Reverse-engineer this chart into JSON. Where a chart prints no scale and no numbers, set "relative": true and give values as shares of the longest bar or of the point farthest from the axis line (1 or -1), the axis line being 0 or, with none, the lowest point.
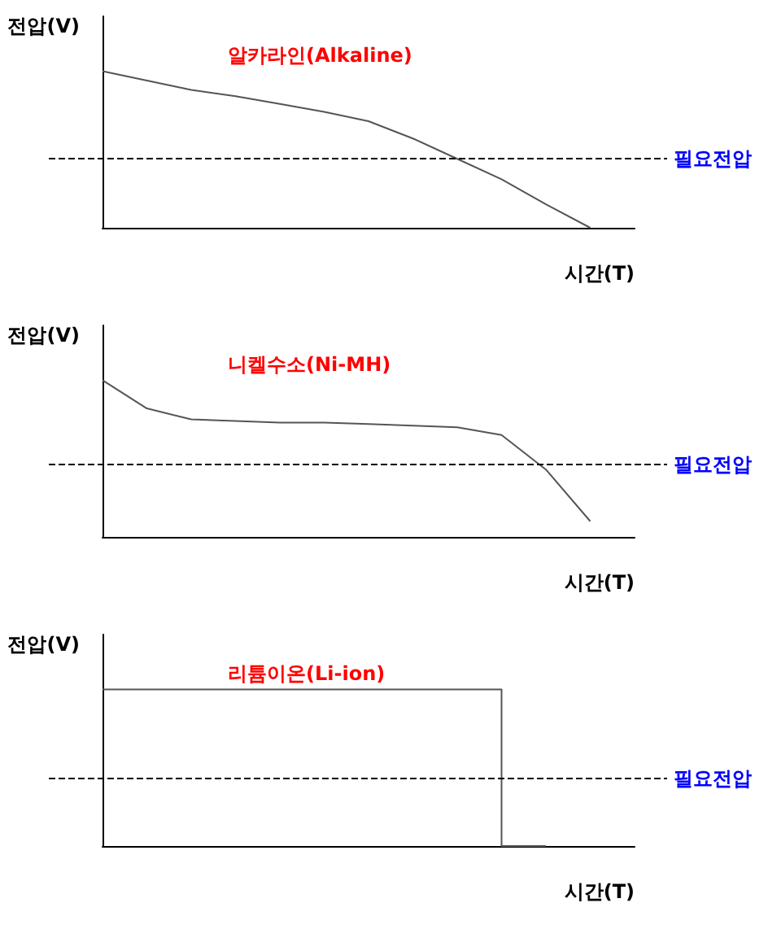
{
  "chart_data": [
    {
      "type": "line",
      "relative": true,
      "xlabel": "시간(T)",
      "ylabel": "전압(V)",
      "annotations": [
        "알카라인(Alkaline)"
      ],
      "categories": [
        null,
        null,
        null,
        null,
        null,
        null,
        null,
        null,
        null,
        null,
        null,
        null,
        null
      ],
      "series": [
        {
          "color": "#555555",
          "values": [
            1,
            0.94,
            0.88,
            0.84,
            0.79,
            0.74,
            0.68,
            0.57,
            0.44,
            0.31,
            0.15,
            0,
            null
          ]
        }
      ],
      "ref_lines": [
        {
          "axis": "y",
          "value": 0.44,
          "label": "필요전압",
          "color": "#000000",
          "line_style": "dashed"
        }
      ],
      "grid": false,
      "marker": "none"
    },
    {
      "type": "line",
      "relative": true,
      "xlabel": "시간(T)",
      "ylabel": "전압(V)",
      "annotations": [
        "니켈수소(Ni-MH)"
      ],
      "categories": [
        null,
        null,
        null,
        null,
        null,
        null,
        null,
        null,
        null,
        null,
        null,
        null,
        null
      ],
      "series": [
        {
          "color": "#555555",
          "values": [
            1,
            0.82,
            0.75,
            0.74,
            0.73,
            0.73,
            0.72,
            0.71,
            0.7,
            0.65,
            0.43,
            0.1,
            null
          ]
        }
      ],
      "ref_lines": [
        {
          "axis": "y",
          "value": 0.46,
          "label": "필요전압",
          "color": "#000000",
          "line_style": "dashed"
        }
      ],
      "grid": false,
      "marker": "none"
    },
    {
      "type": "step",
      "relative": true,
      "xlabel": "시간(T)",
      "ylabel": "전압(V)",
      "annotations": [
        "리튬이온(Li-ion)"
      ],
      "categories": [
        null,
        null,
        null,
        null,
        null,
        null,
        null,
        null,
        null,
        null,
        null,
        null,
        null
      ],
      "series": [
        {
          "color": "#555555",
          "values": [
            1,
            1,
            1,
            1,
            1,
            1,
            1,
            1,
            1,
            0,
            null,
            null,
            null
          ]
        }
      ],
      "ref_lines": [
        {
          "axis": "y",
          "value": 0.43,
          "label": "필요전압",
          "color": "#000000",
          "line_style": "dashed"
        }
      ],
      "grid": false,
      "marker": "none"
    }
  ]
}
